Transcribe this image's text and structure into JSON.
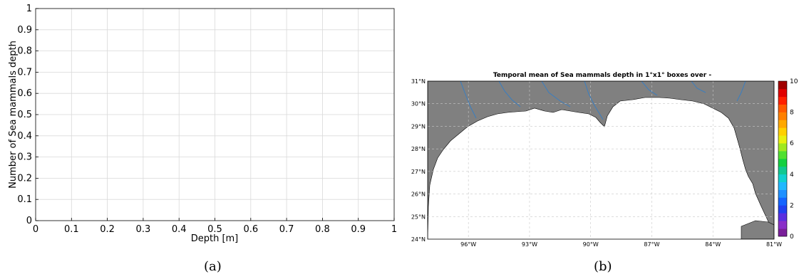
{
  "captions": [
    "(a)",
    "(b)"
  ],
  "chart_data": [
    {
      "type": "line",
      "title": "",
      "xlabel": "Depth [m]",
      "ylabel": "Number of Sea mammals  depth",
      "xlim": [
        0,
        1
      ],
      "ylim": [
        0,
        1
      ],
      "xticks": [
        "0",
        "0.1",
        "0.2",
        "0.3",
        "0.4",
        "0.5",
        "0.6",
        "0.7",
        "0.8",
        "0.9",
        "1"
      ],
      "yticks": [
        "0",
        "0.1",
        "0.2",
        "0.3",
        "0.4",
        "0.5",
        "0.6",
        "0.7",
        "0.8",
        "0.9",
        "1"
      ],
      "grid": true,
      "series": []
    },
    {
      "type": "heatmap",
      "title": "Temporal mean of Sea mammals  depth in 1°x1° boxes over -",
      "lon_range": [
        -98,
        -81
      ],
      "lat_range": [
        24,
        31
      ],
      "lon_ticks": [
        "96°W",
        "93°W",
        "90°W",
        "87°W",
        "84°W",
        "81°W"
      ],
      "lat_ticks": [
        "24°N",
        "25°N",
        "26°N",
        "27°N",
        "28°N",
        "29°N",
        "30°N",
        "31°N"
      ],
      "colorbar": {
        "range": [
          0,
          10
        ],
        "ticks": [
          "0",
          "2",
          "4",
          "6",
          "8",
          "10"
        ],
        "colors": [
          "#7a1f9a",
          "#8a2fc8",
          "#5a2fe0",
          "#2040f0",
          "#1464ff",
          "#1e90ff",
          "#20b8ff",
          "#10d0d0",
          "#10c890",
          "#14d040",
          "#50e030",
          "#a0e820",
          "#e8f010",
          "#ffd000",
          "#ffa800",
          "#ff8000",
          "#ff5a00",
          "#ff2000",
          "#e00000",
          "#a00000"
        ]
      },
      "land_color": "#808080",
      "river_color": "#3a7ec0",
      "grid": true,
      "values": []
    }
  ]
}
